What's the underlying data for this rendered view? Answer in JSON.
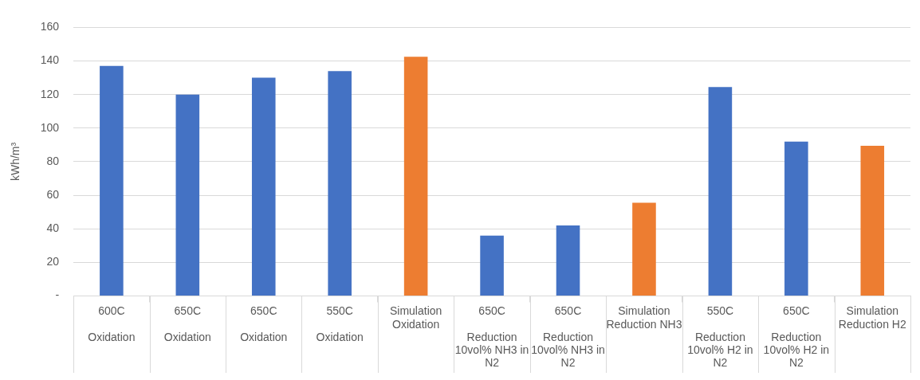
{
  "chart_data": {
    "type": "bar",
    "ylabel": "kWh/m³",
    "categories": [
      "600C\nOxidation",
      "650C\nOxidation",
      "650C\nOxidation",
      "550C\nOxidation",
      "Simulation Oxidation",
      "650C\nReduction 10vol% NH3 in N2",
      "650C\nReduction 10vol% NH3 in N2",
      "Simulation Reduction NH3",
      "550C\nReduction 10vol% H2 in N2",
      "650C\nReduction 10vol% H2 in N2",
      "Simulation Reduction H2"
    ],
    "values": [
      137,
      120,
      130,
      134,
      142.5,
      36,
      42,
      55.5,
      124.5,
      92,
      89.5
    ],
    "colors": [
      "#4472c4",
      "#4472c4",
      "#4472c4",
      "#4472c4",
      "#ed7d31",
      "#4472c4",
      "#4472c4",
      "#ed7d31",
      "#4472c4",
      "#4472c4",
      "#ed7d31"
    ],
    "ylim": [
      0,
      160
    ],
    "yticks": [
      {
        "value": 0,
        "label": "-"
      },
      20,
      40,
      60,
      80,
      100,
      120,
      140,
      160
    ],
    "grid": "y",
    "legend": false
  }
}
